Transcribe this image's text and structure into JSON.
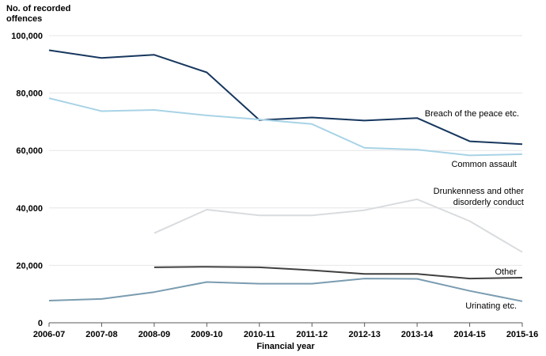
{
  "chart_data": {
    "type": "line",
    "title": "",
    "xlabel": "Financial year",
    "ylabel": [
      "No. of recorded",
      "offences"
    ],
    "ylim": [
      0,
      100000
    ],
    "yticks": [
      0,
      20000,
      40000,
      60000,
      80000,
      100000
    ],
    "ytick_labels": [
      "0",
      "20,000",
      "40,000",
      "60,000",
      "80,000",
      "100,000"
    ],
    "grid": "horizontal",
    "legend": "none (series labelled directly on lines)",
    "categories": [
      "2006-07",
      "2007-08",
      "2008-09",
      "2009-10",
      "2010-11",
      "2011-12",
      "2012-13",
      "2013-14",
      "2014-15",
      "2015-16"
    ],
    "series": [
      {
        "name": "Breach of the peace etc.",
        "label_lines": [
          "Breach of the peace etc."
        ],
        "color": "#17375e",
        "values": [
          94900,
          92200,
          93300,
          87200,
          70600,
          71500,
          70400,
          71300,
          63200,
          62200
        ]
      },
      {
        "name": "Common assault",
        "label_lines": [
          "Common assault"
        ],
        "color": "#a8d3e6",
        "values": [
          78200,
          73700,
          74100,
          72200,
          70800,
          69200,
          60900,
          60300,
          58300,
          58700
        ]
      },
      {
        "name": "Drunkenness and other disorderly conduct",
        "label_lines": [
          "Drunkenness and other",
          "disorderly conduct"
        ],
        "color": "#d9dcdf",
        "values": [
          null,
          null,
          31200,
          39400,
          37400,
          37400,
          39200,
          43000,
          35400,
          24600
        ]
      },
      {
        "name": "Other",
        "label_lines": [
          "Other"
        ],
        "color": "#404040",
        "values": [
          null,
          null,
          19300,
          19500,
          19300,
          18300,
          17000,
          17000,
          15400,
          15700
        ]
      },
      {
        "name": "Urinating etc.",
        "label_lines": [
          "Urinating etc."
        ],
        "color": "#7a9cb0",
        "values": [
          7700,
          8300,
          10700,
          14200,
          13600,
          13600,
          15400,
          15300,
          11100,
          7500
        ]
      }
    ]
  }
}
